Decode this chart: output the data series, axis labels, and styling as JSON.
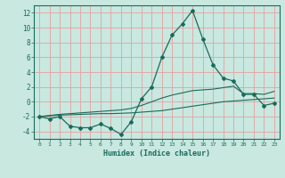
{
  "xlabel": "Humidex (Indice chaleur)",
  "x": [
    0,
    1,
    2,
    3,
    4,
    5,
    6,
    7,
    8,
    9,
    10,
    11,
    12,
    13,
    14,
    15,
    16,
    17,
    18,
    19,
    20,
    21,
    22,
    23
  ],
  "y_main": [
    -2,
    -2.3,
    -2.0,
    -3.3,
    -3.5,
    -3.5,
    -3.0,
    -3.6,
    -4.4,
    -2.7,
    0.4,
    2.0,
    6.0,
    9.0,
    10.5,
    12.3,
    8.5,
    5.0,
    3.2,
    2.8,
    1.0,
    1.0,
    -0.5,
    -0.2
  ],
  "y_upper": [
    -2.0,
    -1.85,
    -1.7,
    -1.6,
    -1.5,
    -1.4,
    -1.3,
    -1.2,
    -1.1,
    -0.9,
    -0.5,
    0.0,
    0.5,
    0.9,
    1.2,
    1.5,
    1.6,
    1.7,
    1.9,
    2.1,
    1.1,
    1.1,
    1.0,
    1.4
  ],
  "y_lower": [
    -2.0,
    -1.9,
    -1.8,
    -1.75,
    -1.7,
    -1.65,
    -1.6,
    -1.6,
    -1.55,
    -1.5,
    -1.4,
    -1.3,
    -1.2,
    -1.0,
    -0.8,
    -0.6,
    -0.4,
    -0.2,
    0.0,
    0.1,
    0.2,
    0.3,
    0.4,
    0.5
  ],
  "line_color": "#1a6b5a",
  "bg_color": "#c8e8e0",
  "grid_color": "#e8a0a0",
  "ylim": [
    -5,
    13
  ],
  "xlim": [
    -0.5,
    23.5
  ],
  "yticks": [
    -4,
    -2,
    0,
    2,
    4,
    6,
    8,
    10,
    12
  ],
  "xticks": [
    0,
    1,
    2,
    3,
    4,
    5,
    6,
    7,
    8,
    9,
    10,
    11,
    12,
    13,
    14,
    15,
    16,
    17,
    18,
    19,
    20,
    21,
    22,
    23
  ]
}
